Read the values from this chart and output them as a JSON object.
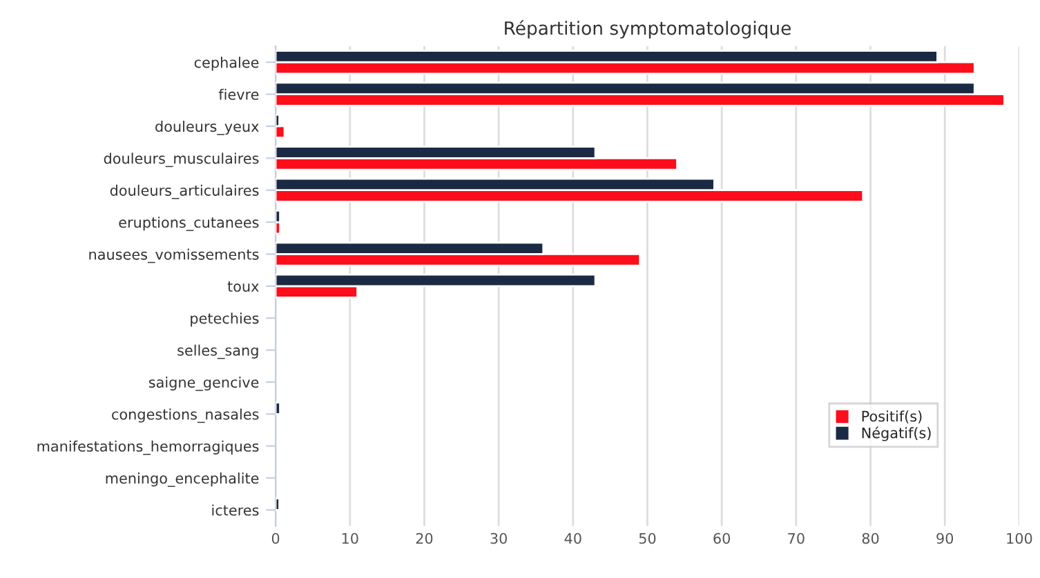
{
  "chart_data": {
    "type": "bar",
    "orientation": "horizontal",
    "title": "Répartition symptomatologique",
    "categories": [
      "cephalee",
      "fievre",
      "douleurs_yeux",
      "douleurs_musculaires",
      "douleurs_articulaires",
      "eruptions_cutanees",
      "nausees_vomissements",
      "toux",
      "petechies",
      "selles_sang",
      "saigne_gencive",
      "congestions_nasales",
      "manifestations_hemorragiques",
      "meningo_encephalite",
      "icteres"
    ],
    "series": [
      {
        "name": "Positif(s)",
        "color": "#ff0d1a",
        "values": [
          94,
          98,
          1.2,
          54,
          79,
          0.6,
          49,
          11,
          null,
          null,
          null,
          null,
          null,
          null,
          null
        ]
      },
      {
        "name": "Négatif(s)",
        "color": "#1b2a44",
        "values": [
          89,
          94,
          0.5,
          43,
          59,
          0.6,
          36,
          43,
          null,
          null,
          null,
          0.6,
          null,
          null,
          0.5
        ]
      }
    ],
    "xlim": [
      0,
      100
    ],
    "xticks": [
      0,
      10,
      20,
      30,
      40,
      50,
      60,
      70,
      80,
      90,
      100
    ],
    "grid": "x",
    "legend": "bottom right"
  }
}
